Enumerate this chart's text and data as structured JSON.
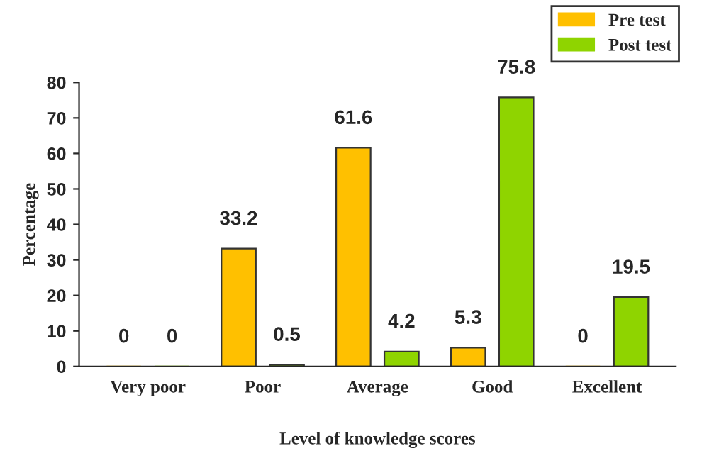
{
  "chart_data": {
    "type": "bar",
    "xlabel": "Level of knowledge scores",
    "ylabel": "Percentage",
    "categories": [
      "Very poor",
      "Poor",
      "Average",
      "Good",
      "Excellent"
    ],
    "series": [
      {
        "name": "Pre test",
        "color": "#ffc000",
        "values": [
          0,
          33.2,
          61.6,
          5.3,
          0
        ]
      },
      {
        "name": "Post test",
        "color": "#8fd400",
        "values": [
          0,
          0.5,
          4.2,
          75.8,
          19.5
        ]
      }
    ],
    "ylim": [
      0,
      80
    ],
    "yticks": [
      0,
      10,
      20,
      30,
      40,
      50,
      60,
      70,
      80
    ],
    "data_labels": true,
    "legend": "top right",
    "grid": false
  }
}
